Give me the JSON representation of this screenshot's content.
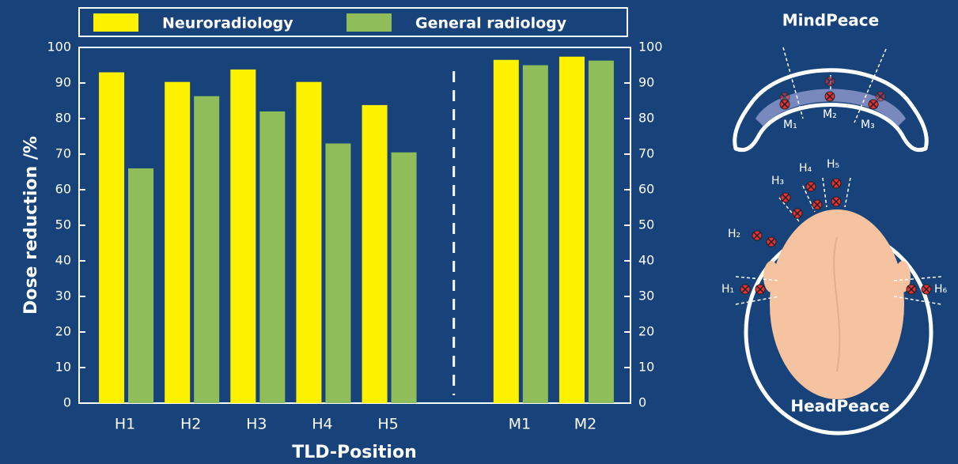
{
  "chart_data": {
    "type": "bar",
    "categories": [
      "H1",
      "H2",
      "H3",
      "H4",
      "H5",
      null,
      "M1",
      "M2"
    ],
    "series": [
      {
        "name": "Neuroradiology",
        "color": "#fff200",
        "values": [
          93,
          90.3,
          93.8,
          90.3,
          83.8,
          null,
          96.5,
          97.4
        ]
      },
      {
        "name": "General radiology",
        "color": "#8fbd5a",
        "values": [
          66,
          86.3,
          82,
          73,
          70.5,
          null,
          95,
          96.3
        ]
      }
    ],
    "ylabel": "Dose reduction /%",
    "xlabel": "TLD-Position",
    "ylim": [
      0,
      100
    ],
    "yticks": [
      0,
      10,
      20,
      30,
      40,
      50,
      60,
      70,
      80,
      90,
      100
    ],
    "y2lim": [
      0,
      100
    ],
    "y2ticks": [
      0,
      10,
      20,
      30,
      40,
      50,
      60,
      70,
      80,
      90,
      100
    ],
    "legend": "top"
  },
  "diagrams": {
    "mindpeace": {
      "title": "MindPeace",
      "labels": [
        "M₁",
        "M₂",
        "M₃"
      ]
    },
    "headpeace": {
      "title": "HeadPeace",
      "labels": [
        "H₁",
        "H₂",
        "H₃",
        "H₄",
        "H₅",
        "H₆"
      ]
    }
  }
}
